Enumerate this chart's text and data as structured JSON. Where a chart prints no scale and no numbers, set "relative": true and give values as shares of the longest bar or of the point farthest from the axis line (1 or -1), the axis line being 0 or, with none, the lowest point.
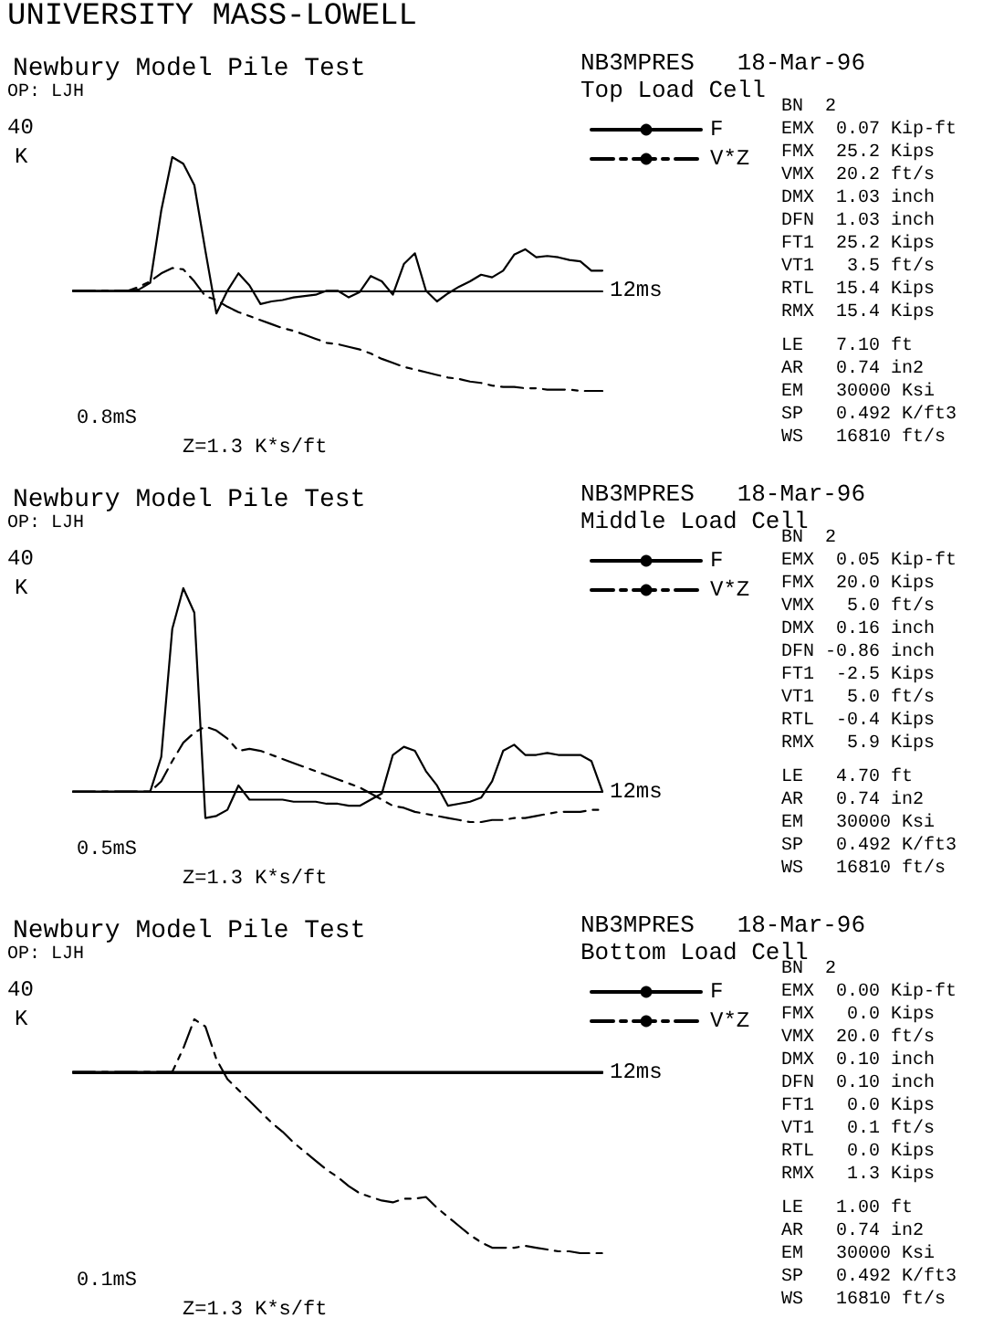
{
  "chart_data": [
    {
      "type": "other",
      "title": "UNIVERSITY MASS-LOWELL"
    },
    {
      "type": "line",
      "relative": true,
      "title": "Newbury Model Pile Test",
      "ylabel": "K",
      "xlabel": "12ms",
      "legend": "top right",
      "marker": "none",
      "categories": [
        null,
        null,
        null,
        null,
        null,
        null,
        null,
        null,
        null,
        null,
        null,
        null,
        null,
        null,
        null,
        null,
        null,
        null,
        null,
        null,
        null,
        null,
        null,
        null,
        null,
        null,
        null,
        null,
        null,
        null,
        null,
        null,
        null,
        null,
        null,
        null,
        null,
        null,
        null,
        null,
        null,
        null,
        null,
        null,
        null,
        null,
        null,
        null,
        null
      ],
      "annotations": [
        "NB3MPRES   18-Mar-96",
        "Top Load Cell",
        "40",
        "0.8mS",
        "Z=1.3 K*s/ft",
        "OP: LJH",
        "BN  2",
        "EMX  0.07 Kip-ft",
        "FMX  25.2 Kips",
        "VMX  20.2 ft/s",
        "DMX  1.03 inch",
        "DFN  1.03 inch",
        "FT1  25.2 Kips",
        "VT1   3.5 ft/s",
        "RTL  15.4 Kips",
        "RMX  15.4 Kips",
        "LE   7.10 ft",
        "AR   0.74 in2",
        "EM   30000 Ksi",
        "SP   0.492 K/ft3",
        "WS   16810 ft/s"
      ],
      "series": [
        {
          "name": "F",
          "color": "#000000",
          "line_style": "solid",
          "values": [
            0,
            0,
            0,
            0,
            0,
            0,
            0.01,
            0.06,
            0.6,
            1,
            0.95,
            0.79,
            0.3,
            -0.17,
            0,
            0.13,
            0.04,
            -0.1,
            -0.08,
            -0.07,
            -0.05,
            -0.04,
            -0.03,
            0,
            0,
            -0.05,
            -0.01,
            0.11,
            0.07,
            -0.03,
            0.2,
            0.28,
            0,
            -0.08,
            -0.02,
            0.03,
            0.07,
            0.12,
            0.1,
            0.15,
            0.27,
            0.31,
            0.25,
            0.26,
            0.25,
            0.23,
            0.22,
            0.15,
            0.15
          ]
        },
        {
          "name": "V*Z",
          "color": "#000000",
          "line_style": "dashed",
          "values": [
            0,
            0,
            0,
            0,
            0,
            0,
            0.03,
            0.07,
            0.13,
            0.17,
            0.16,
            0.07,
            -0.04,
            -0.07,
            -0.12,
            -0.16,
            -0.19,
            -0.22,
            -0.25,
            -0.28,
            -0.3,
            -0.33,
            -0.36,
            -0.39,
            -0.4,
            -0.42,
            -0.44,
            -0.47,
            -0.51,
            -0.54,
            -0.57,
            -0.59,
            -0.61,
            -0.63,
            -0.65,
            -0.66,
            -0.68,
            -0.69,
            -0.71,
            -0.72,
            -0.72,
            -0.73,
            -0.73,
            -0.74,
            -0.74,
            -0.74,
            -0.75,
            -0.75,
            -0.75
          ]
        }
      ]
    },
    {
      "type": "line",
      "relative": true,
      "title": "Newbury Model Pile Test",
      "ylabel": "K",
      "xlabel": "12ms",
      "legend": "top right",
      "marker": "none",
      "categories": [
        null,
        null,
        null,
        null,
        null,
        null,
        null,
        null,
        null,
        null,
        null,
        null,
        null,
        null,
        null,
        null,
        null,
        null,
        null,
        null,
        null,
        null,
        null,
        null,
        null,
        null,
        null,
        null,
        null,
        null,
        null,
        null,
        null,
        null,
        null,
        null,
        null,
        null,
        null,
        null,
        null,
        null,
        null,
        null,
        null,
        null,
        null,
        null,
        null
      ],
      "annotations": [
        "NB3MPRES   18-Mar-96",
        "Middle Load Cell",
        "40",
        "0.5mS",
        "Z=1.3 K*s/ft",
        "OP: LJH",
        "BN  2",
        "EMX  0.05 Kip-ft",
        "FMX  20.0 Kips",
        "VMX   5.0 ft/s",
        "DMX  0.16 inch",
        "DFN -0.86 inch",
        "FT1  -2.5 Kips",
        "VT1   5.0 ft/s",
        "RTL  -0.4 Kips",
        "RMX   5.9 Kips",
        "LE   4.70 ft",
        "AR   0.74 in2",
        "EM   30000 Ksi",
        "SP   0.492 K/ft3",
        "WS   16810 ft/s"
      ],
      "series": [
        {
          "name": "F",
          "color": "#000000",
          "line_style": "solid",
          "values": [
            0,
            0,
            0,
            0,
            0,
            0,
            0,
            0,
            0.17,
            0.8,
            1,
            0.88,
            -0.13,
            -0.12,
            -0.09,
            0.03,
            -0.04,
            -0.04,
            -0.04,
            -0.04,
            -0.05,
            -0.05,
            -0.05,
            -0.06,
            -0.06,
            -0.07,
            -0.07,
            -0.04,
            -0.01,
            0.18,
            0.22,
            0.2,
            0.1,
            0.03,
            -0.07,
            -0.06,
            -0.05,
            -0.03,
            0.05,
            0.2,
            0.23,
            0.18,
            0.18,
            0.19,
            0.18,
            0.18,
            0.18,
            0.15,
            0
          ]
        },
        {
          "name": "V*Z",
          "color": "#000000",
          "line_style": "dashed",
          "values": [
            0,
            0,
            0,
            0,
            0,
            0,
            0,
            0,
            0.05,
            0.15,
            0.24,
            0.29,
            0.32,
            0.3,
            0.26,
            0.2,
            0.21,
            0.2,
            0.18,
            0.16,
            0.14,
            0.12,
            0.1,
            0.08,
            0.06,
            0.04,
            0.02,
            -0.01,
            -0.04,
            -0.07,
            -0.08,
            -0.1,
            -0.11,
            -0.12,
            -0.13,
            -0.14,
            -0.15,
            -0.15,
            -0.14,
            -0.14,
            -0.13,
            -0.13,
            -0.12,
            -0.11,
            -0.1,
            -0.1,
            -0.1,
            -0.09,
            -0.09
          ]
        }
      ]
    },
    {
      "type": "line",
      "relative": true,
      "title": "Newbury Model Pile Test",
      "ylabel": "K",
      "xlabel": "12ms",
      "legend": "top right",
      "marker": "none",
      "categories": [
        null,
        null,
        null,
        null,
        null,
        null,
        null,
        null,
        null,
        null,
        null,
        null,
        null,
        null,
        null,
        null,
        null,
        null,
        null,
        null,
        null,
        null,
        null,
        null,
        null,
        null,
        null,
        null,
        null,
        null,
        null,
        null,
        null,
        null,
        null,
        null,
        null,
        null,
        null,
        null,
        null,
        null,
        null,
        null,
        null,
        null,
        null,
        null,
        null
      ],
      "annotations": [
        "NB3MPRES   18-Mar-96",
        "Bottom Load Cell",
        "40",
        "0.1mS",
        "Z=1.3 K*s/ft",
        "OP: LJH",
        "BN  2",
        "EMX  0.00 Kip-ft",
        "FMX   0.0 Kips",
        "VMX  20.0 ft/s",
        "DMX  0.10 inch",
        "DFN  0.10 inch",
        "FT1   0.0 Kips",
        "VT1   0.1 ft/s",
        "RTL   0.0 Kips",
        "RMX   1.3 Kips",
        "LE   1.00 ft",
        "AR   0.74 in2",
        "EM   30000 Ksi",
        "SP   0.492 K/ft3",
        "WS   16810 ft/s"
      ],
      "series": [
        {
          "name": "F",
          "color": "#000000",
          "line_style": "solid",
          "values": [
            0,
            0,
            0,
            0,
            0,
            0,
            0,
            0,
            0,
            0,
            0,
            0,
            0,
            0,
            0,
            0,
            0,
            0,
            0,
            0,
            0,
            0,
            0,
            0,
            0,
            0,
            0,
            0,
            0,
            0,
            0,
            0,
            0,
            0,
            0,
            0,
            0,
            0,
            0,
            0,
            0,
            0,
            0,
            0,
            0,
            0,
            0,
            0,
            0
          ]
        },
        {
          "name": "V*Z",
          "color": "#000000",
          "line_style": "dashed",
          "values": [
            0,
            0,
            0,
            0,
            0,
            0,
            0,
            0,
            0,
            0,
            0.13,
            0.29,
            0.25,
            0.07,
            -0.04,
            -0.1,
            -0.16,
            -0.22,
            -0.28,
            -0.33,
            -0.39,
            -0.44,
            -0.49,
            -0.54,
            -0.58,
            -0.63,
            -0.67,
            -0.69,
            -0.71,
            -0.72,
            -0.7,
            -0.7,
            -0.69,
            -0.75,
            -0.8,
            -0.85,
            -0.9,
            -0.94,
            -0.97,
            -0.97,
            -0.97,
            -0.96,
            -0.97,
            -0.98,
            -0.99,
            -0.99,
            -1,
            -1,
            -1
          ]
        }
      ]
    }
  ]
}
